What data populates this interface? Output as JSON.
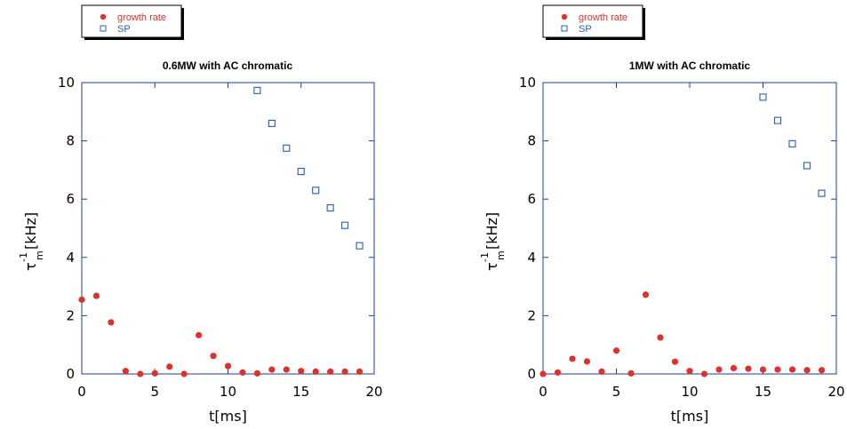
{
  "colors": {
    "growth": "#e0302a",
    "sp": "#2a5ca8",
    "frame": "#1f3f9a"
  },
  "chart_data": [
    {
      "type": "scatter",
      "title": "0.6MW with AC chromatic",
      "xlabel": "t[ms]",
      "ylabel_main": "τ",
      "ylabel_sup": "-1",
      "ylabel_sub": "m",
      "ylabel_unit": "[kHz]",
      "xlim": [
        0,
        20
      ],
      "ylim": [
        0,
        10
      ],
      "x_ticks": [
        "0",
        "5",
        "10",
        "15",
        "20"
      ],
      "y_ticks": [
        "0",
        "2",
        "4",
        "6",
        "8",
        "10"
      ],
      "legend": {
        "placement": "top-left above plot",
        "entries": [
          "growth rate",
          "SP"
        ]
      },
      "series": [
        {
          "name": "growth rate",
          "marker": "filled-circle",
          "x": [
            0,
            1,
            2,
            3,
            4,
            5,
            6,
            7,
            8,
            9,
            10,
            11,
            12,
            13,
            14,
            15,
            16,
            17,
            18,
            19
          ],
          "y": [
            2.55,
            2.68,
            1.77,
            0.1,
            0.0,
            0.02,
            0.25,
            0.0,
            1.33,
            0.62,
            0.27,
            0.05,
            0.02,
            0.15,
            0.15,
            0.1,
            0.08,
            0.08,
            0.08,
            0.08
          ]
        },
        {
          "name": "SP",
          "marker": "open-square",
          "x": [
            12,
            13,
            14,
            15,
            16,
            17,
            18,
            19
          ],
          "y": [
            9.73,
            8.6,
            7.75,
            6.95,
            6.3,
            5.7,
            5.1,
            4.4
          ]
        }
      ]
    },
    {
      "type": "scatter",
      "title": "1MW with AC chromatic",
      "xlabel": "t[ms]",
      "ylabel_main": "τ",
      "ylabel_sup": "-1",
      "ylabel_sub": "m",
      "ylabel_unit": "[kHz]",
      "xlim": [
        0,
        20
      ],
      "ylim": [
        0,
        10
      ],
      "x_ticks": [
        "0",
        "5",
        "10",
        "15",
        "20"
      ],
      "y_ticks": [
        "0",
        "2",
        "4",
        "6",
        "8",
        "10"
      ],
      "legend": {
        "placement": "top-left above plot",
        "entries": [
          "growth rate",
          "SP"
        ]
      },
      "series": [
        {
          "name": "growth rate",
          "marker": "filled-circle",
          "x": [
            0,
            1,
            2,
            3,
            4,
            5,
            6,
            7,
            8,
            9,
            10,
            11,
            12,
            13,
            14,
            15,
            16,
            17,
            18,
            19
          ],
          "y": [
            0.0,
            0.05,
            0.52,
            0.43,
            0.08,
            0.8,
            0.02,
            2.72,
            1.25,
            0.42,
            0.1,
            0.0,
            0.15,
            0.2,
            0.18,
            0.15,
            0.15,
            0.15,
            0.13,
            0.13
          ]
        },
        {
          "name": "SP",
          "marker": "open-square",
          "x": [
            15,
            16,
            17,
            18,
            19
          ],
          "y": [
            9.5,
            8.7,
            7.9,
            7.15,
            6.2
          ]
        }
      ]
    }
  ]
}
